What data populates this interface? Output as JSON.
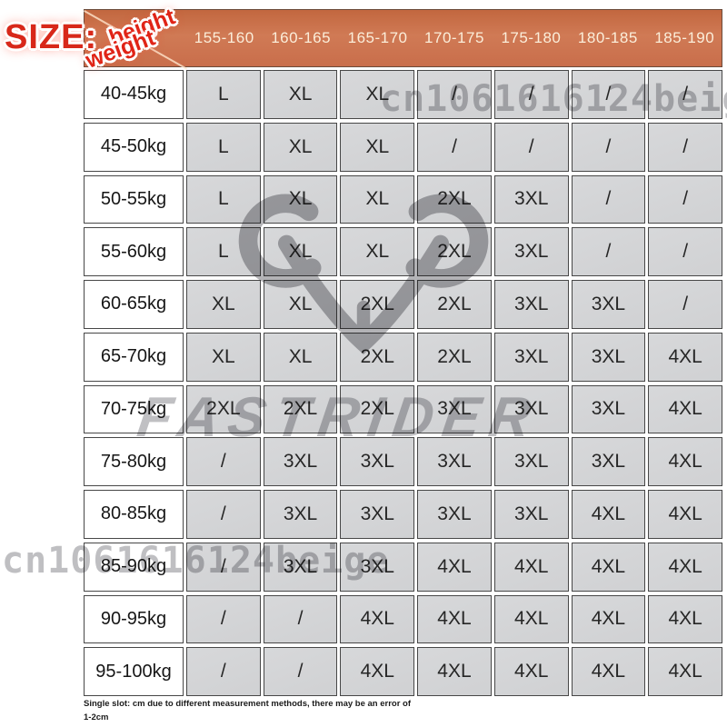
{
  "size_label": "SIZE:",
  "corner": {
    "top": "height",
    "bottom": "weight"
  },
  "watermarks": {
    "id_text": "cn1061616124beige",
    "brand_text": "FASTRIDER"
  },
  "footer": {
    "line1": "Single slot: cm due to different measurement methods, there may be an error of",
    "line2": "1-2cm"
  },
  "colors": {
    "header_bg": "#c96e4b",
    "header_text": "#fbeeda",
    "cell_bg": "#d3d4d6",
    "row_header_bg": "#ffffff",
    "accent_red": "#d8281a",
    "grid_border": "#474747"
  },
  "chart_data": {
    "type": "table",
    "title": "SIZE:",
    "col_axis_label": "height",
    "row_axis_label": "weight",
    "columns": [
      "155-160",
      "160-165",
      "165-170",
      "170-175",
      "175-180",
      "180-185",
      "185-190"
    ],
    "rows": [
      {
        "weight": "40-45kg",
        "sizes": [
          "L",
          "XL",
          "XL",
          "/",
          "/",
          "/",
          "/"
        ]
      },
      {
        "weight": "45-50kg",
        "sizes": [
          "L",
          "XL",
          "XL",
          "/",
          "/",
          "/",
          "/"
        ]
      },
      {
        "weight": "50-55kg",
        "sizes": [
          "L",
          "XL",
          "XL",
          "2XL",
          "3XL",
          "/",
          "/"
        ]
      },
      {
        "weight": "55-60kg",
        "sizes": [
          "L",
          "XL",
          "XL",
          "2XL",
          "3XL",
          "/",
          "/"
        ]
      },
      {
        "weight": "60-65kg",
        "sizes": [
          "XL",
          "XL",
          "2XL",
          "2XL",
          "3XL",
          "3XL",
          "/"
        ]
      },
      {
        "weight": "65-70kg",
        "sizes": [
          "XL",
          "XL",
          "2XL",
          "2XL",
          "3XL",
          "3XL",
          "4XL"
        ]
      },
      {
        "weight": "70-75kg",
        "sizes": [
          "2XL",
          "2XL",
          "2XL",
          "3XL",
          "3XL",
          "3XL",
          "4XL"
        ]
      },
      {
        "weight": "75-80kg",
        "sizes": [
          "/",
          "3XL",
          "3XL",
          "3XL",
          "3XL",
          "3XL",
          "4XL"
        ]
      },
      {
        "weight": "80-85kg",
        "sizes": [
          "/",
          "3XL",
          "3XL",
          "3XL",
          "3XL",
          "4XL",
          "4XL"
        ]
      },
      {
        "weight": "85-90kg",
        "sizes": [
          "/",
          "3XL",
          "3XL",
          "4XL",
          "4XL",
          "4XL",
          "4XL"
        ]
      },
      {
        "weight": "90-95kg",
        "sizes": [
          "/",
          "/",
          "4XL",
          "4XL",
          "4XL",
          "4XL",
          "4XL"
        ]
      },
      {
        "weight": "95-100kg",
        "sizes": [
          "/",
          "/",
          "4XL",
          "4XL",
          "4XL",
          "4XL",
          "4XL"
        ]
      }
    ]
  }
}
